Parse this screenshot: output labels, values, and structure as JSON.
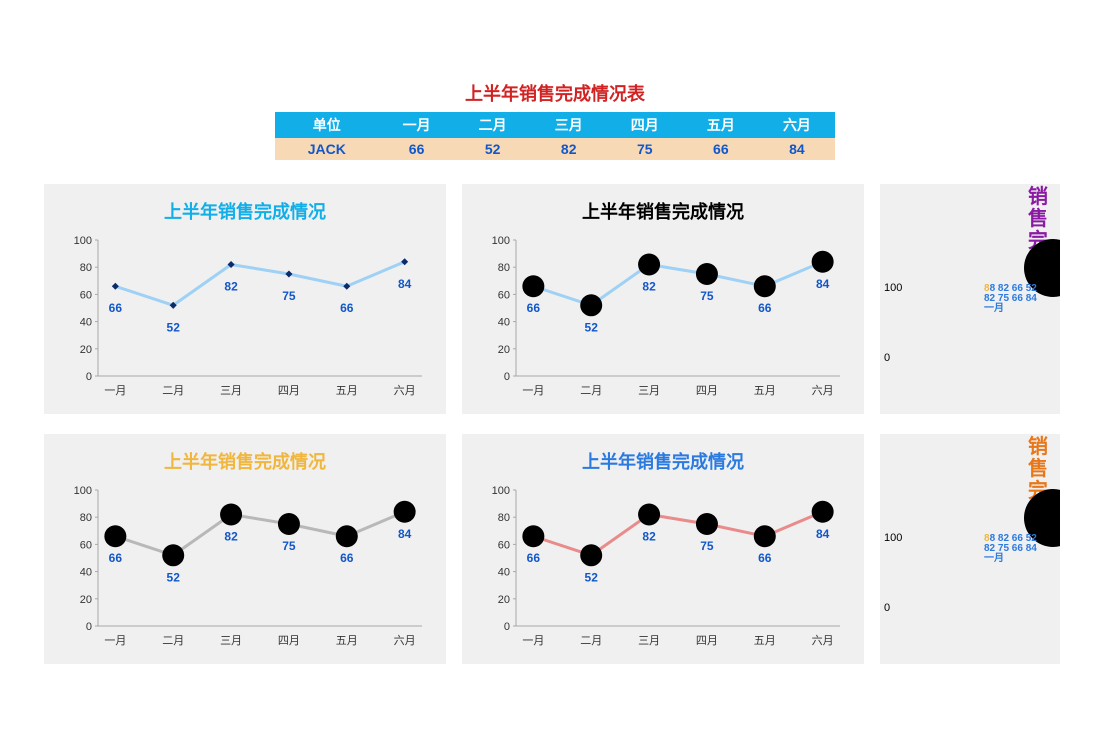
{
  "title": {
    "text": "上半年销售完成情况表",
    "color": "#d12323",
    "fontsize": 18
  },
  "table": {
    "header_bg": "#12aee8",
    "header_fg": "#ffffff",
    "row_bg": "#f8d9b6",
    "row_fg": "#1257c9",
    "columns": [
      "单位",
      "一月",
      "二月",
      "三月",
      "四月",
      "五月",
      "六月"
    ],
    "rows": [
      [
        "JACK",
        "66",
        "52",
        "82",
        "75",
        "66",
        "84"
      ]
    ]
  },
  "chart_common": {
    "categories": [
      "一月",
      "二月",
      "三月",
      "四月",
      "五月",
      "六月"
    ],
    "values": [
      66,
      52,
      82,
      75,
      66,
      84
    ],
    "ylim": [
      0,
      100
    ],
    "ytick_step": 20,
    "value_label_color": "#1257c9",
    "panel_bg": "#f0f0f0",
    "tick_color": "#333333",
    "axis_color": "#a8a8a8"
  },
  "charts": [
    {
      "title": "上半年销售完成情况",
      "title_color": "#12aee8",
      "line_color": "#9ed1f5",
      "marker": "diamond",
      "marker_color": "#0c2b6b",
      "marker_size": 5,
      "line_width": 3
    },
    {
      "title": "上半年销售完成情况",
      "title_color": "#000000",
      "line_color": "#9ed1f5",
      "marker": "circle",
      "marker_color": "#000000",
      "marker_size": 22,
      "line_width": 3
    },
    {
      "title": "上半年销售完成情况",
      "title_color": "#f0b63e",
      "line_color": "#b8b8b8",
      "marker": "circle",
      "marker_color": "#000000",
      "marker_size": 22,
      "line_width": 3
    },
    {
      "title": "上半年销售完成情况",
      "title_color": "#2a7ae0",
      "line_color": "#e98b8b",
      "marker": "circle",
      "marker_color": "#000000",
      "marker_size": 22,
      "line_width": 3
    }
  ],
  "mini_panels": [
    {
      "title": "销售完成",
      "title_color": "#8a1aa3",
      "clutter_colors": [
        "#f0b63e",
        "#2a7ae0"
      ],
      "ylabel_100": "100",
      "ylabel_0": "0",
      "marker_color": "#000000"
    },
    {
      "title": "销售完成",
      "title_color": "#e8771a",
      "clutter_colors": [
        "#f0b63e",
        "#2a7ae0"
      ],
      "ylabel_100": "100",
      "ylabel_0": "0",
      "marker_color": "#000000"
    }
  ],
  "mini_clutter_text": "8 82 66 52 82 75 66 84 一月"
}
